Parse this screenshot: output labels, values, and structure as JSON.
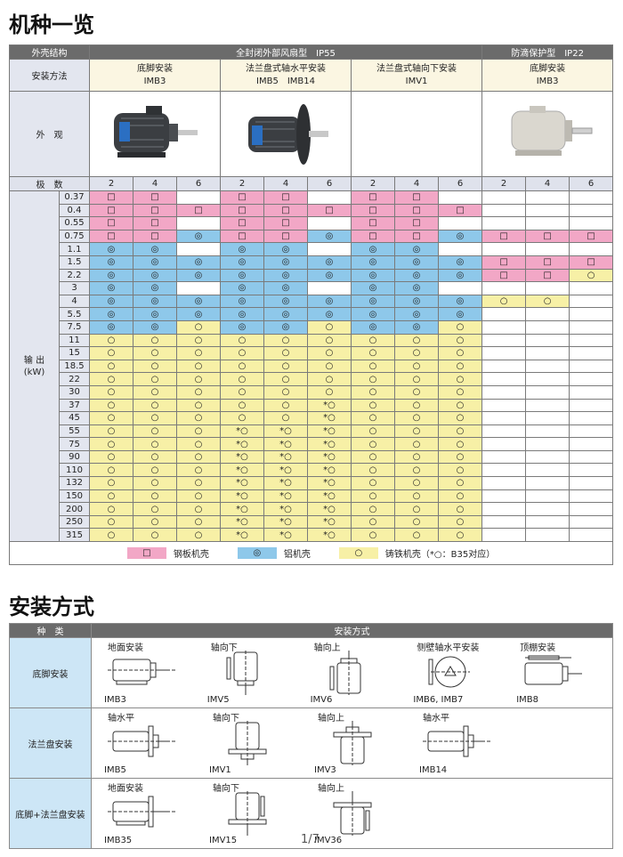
{
  "title": "机种一览",
  "models_table": {
    "enclosure_label": "外壳结构",
    "enclosures": [
      "全封闭外部风扇型　IP55",
      "防滴保护型　IP22"
    ],
    "mounting_label": "安装方法",
    "mountings": [
      {
        "name": "底脚安装",
        "code": "IMB3"
      },
      {
        "name": "法兰盘式轴水平安装",
        "code": "IMB5　IMB14"
      },
      {
        "name": "法兰盘式轴向下安装",
        "code": "IMV1"
      },
      {
        "name": "底脚安装",
        "code": "IMB3"
      }
    ],
    "appearance_label": "外　观",
    "poles_label": "极　数",
    "poles": [
      2,
      4,
      6,
      2,
      4,
      6,
      2,
      4,
      6,
      2,
      4,
      6
    ],
    "output_label": "输 出",
    "output_unit": "(kW)",
    "rows": [
      {
        "kw": 0.37,
        "cells": [
          "□",
          "□",
          null,
          "□",
          "□",
          null,
          "□",
          "□",
          null,
          null,
          null,
          null
        ]
      },
      {
        "kw": 0.4,
        "cells": [
          "□",
          "□",
          "□",
          "□",
          "□",
          "□",
          "□",
          "□",
          "□",
          null,
          null,
          null
        ]
      },
      {
        "kw": 0.55,
        "cells": [
          "□",
          "□",
          null,
          "□",
          "□",
          null,
          "□",
          "□",
          null,
          null,
          null,
          null
        ]
      },
      {
        "kw": 0.75,
        "cells": [
          "□",
          "□",
          "◎",
          "□",
          "□",
          "◎",
          "□",
          "□",
          "◎",
          "□",
          "□",
          "□"
        ]
      },
      {
        "kw": 1.1,
        "cells": [
          "◎",
          "◎",
          null,
          "◎",
          "◎",
          null,
          "◎",
          "◎",
          null,
          null,
          null,
          null
        ]
      },
      {
        "kw": 1.5,
        "cells": [
          "◎",
          "◎",
          "◎",
          "◎",
          "◎",
          "◎",
          "◎",
          "◎",
          "◎",
          "□",
          "□",
          "□"
        ]
      },
      {
        "kw": 2.2,
        "cells": [
          "◎",
          "◎",
          "◎",
          "◎",
          "◎",
          "◎",
          "◎",
          "◎",
          "◎",
          "□",
          "□",
          "○"
        ]
      },
      {
        "kw": 3,
        "cells": [
          "◎",
          "◎",
          null,
          "◎",
          "◎",
          null,
          "◎",
          "◎",
          null,
          null,
          null,
          null
        ]
      },
      {
        "kw": 4,
        "cells": [
          "◎",
          "◎",
          "◎",
          "◎",
          "◎",
          "◎",
          "◎",
          "◎",
          "◎",
          "○",
          "○",
          null
        ]
      },
      {
        "kw": 5.5,
        "cells": [
          "◎",
          "◎",
          "◎",
          "◎",
          "◎",
          "◎",
          "◎",
          "◎",
          "◎",
          null,
          null,
          null
        ]
      },
      {
        "kw": 7.5,
        "cells": [
          "◎",
          "◎",
          "○",
          "◎",
          "◎",
          "○",
          "◎",
          "◎",
          "○",
          null,
          null,
          null
        ]
      },
      {
        "kw": 11,
        "cells": [
          "○",
          "○",
          "○",
          "○",
          "○",
          "○",
          "○",
          "○",
          "○",
          null,
          null,
          null
        ]
      },
      {
        "kw": 15,
        "cells": [
          "○",
          "○",
          "○",
          "○",
          "○",
          "○",
          "○",
          "○",
          "○",
          null,
          null,
          null
        ]
      },
      {
        "kw": 18.5,
        "cells": [
          "○",
          "○",
          "○",
          "○",
          "○",
          "○",
          "○",
          "○",
          "○",
          null,
          null,
          null
        ]
      },
      {
        "kw": 22,
        "cells": [
          "○",
          "○",
          "○",
          "○",
          "○",
          "○",
          "○",
          "○",
          "○",
          null,
          null,
          null
        ]
      },
      {
        "kw": 30,
        "cells": [
          "○",
          "○",
          "○",
          "○",
          "○",
          "○",
          "○",
          "○",
          "○",
          null,
          null,
          null
        ]
      },
      {
        "kw": 37,
        "cells": [
          "○",
          "○",
          "○",
          "○",
          "○",
          "*○",
          "○",
          "○",
          "○",
          null,
          null,
          null
        ]
      },
      {
        "kw": 45,
        "cells": [
          "○",
          "○",
          "○",
          "○",
          "○",
          "*○",
          "○",
          "○",
          "○",
          null,
          null,
          null
        ]
      },
      {
        "kw": 55,
        "cells": [
          "○",
          "○",
          "○",
          "*○",
          "*○",
          "*○",
          "○",
          "○",
          "○",
          null,
          null,
          null
        ]
      },
      {
        "kw": 75,
        "cells": [
          "○",
          "○",
          "○",
          "*○",
          "*○",
          "*○",
          "○",
          "○",
          "○",
          null,
          null,
          null
        ]
      },
      {
        "kw": 90,
        "cells": [
          "○",
          "○",
          "○",
          "*○",
          "*○",
          "*○",
          "○",
          "○",
          "○",
          null,
          null,
          null
        ]
      },
      {
        "kw": 110,
        "cells": [
          "○",
          "○",
          "○",
          "*○",
          "*○",
          "*○",
          "○",
          "○",
          "○",
          null,
          null,
          null
        ]
      },
      {
        "kw": 132,
        "cells": [
          "○",
          "○",
          "○",
          "*○",
          "*○",
          "*○",
          "○",
          "○",
          "○",
          null,
          null,
          null
        ]
      },
      {
        "kw": 150,
        "cells": [
          "○",
          "○",
          "○",
          "*○",
          "*○",
          "*○",
          "○",
          "○",
          "○",
          null,
          null,
          null
        ]
      },
      {
        "kw": 200,
        "cells": [
          "○",
          "○",
          "○",
          "*○",
          "*○",
          "*○",
          "○",
          "○",
          "○",
          null,
          null,
          null
        ]
      },
      {
        "kw": 250,
        "cells": [
          "○",
          "○",
          "○",
          "*○",
          "*○",
          "*○",
          "○",
          "○",
          "○",
          null,
          null,
          null
        ]
      },
      {
        "kw": 315,
        "cells": [
          "○",
          "○",
          "○",
          "*○",
          "*○",
          "*○",
          "○",
          "○",
          "○",
          null,
          null,
          null
        ]
      }
    ],
    "legend": [
      {
        "symbol": "□",
        "label": "钢板机壳",
        "color": "#f2a7c6"
      },
      {
        "symbol": "◎",
        "label": "铝机壳",
        "color": "#8ec8ea"
      },
      {
        "symbol": "○",
        "label": "铸铁机壳（*○：B35对应）",
        "color": "#f7f0a6"
      }
    ]
  },
  "mounting_title": "安装方式",
  "mounting_table": {
    "type_label": "种　类",
    "method_label": "安装方式",
    "rows": [
      {
        "type": "底脚安装",
        "items": [
          {
            "name": "地面安装",
            "code": "IMB3"
          },
          {
            "name": "轴向下",
            "code": "IMV5"
          },
          {
            "name": "轴向上",
            "code": "IMV6"
          },
          {
            "name": "侧壁轴水平安装",
            "code": "IMB6, IMB7"
          },
          {
            "name": "顶棚安装",
            "code": "IMB8"
          }
        ]
      },
      {
        "type": "法兰盘安装",
        "items": [
          {
            "name": "轴水平",
            "code": "IMB5"
          },
          {
            "name": "轴向下",
            "code": "IMV1"
          },
          {
            "name": "轴向上",
            "code": "IMV3"
          },
          {
            "name": "轴水平",
            "code": "IMB14"
          }
        ]
      },
      {
        "type": "底脚+法兰盘安装",
        "items": [
          {
            "name": "地面安装",
            "code": "IMB35"
          },
          {
            "name": "轴向下",
            "code": "IMV15"
          },
          {
            "name": "轴向上",
            "code": "IMV36"
          }
        ]
      }
    ]
  },
  "page_number": "1/7"
}
